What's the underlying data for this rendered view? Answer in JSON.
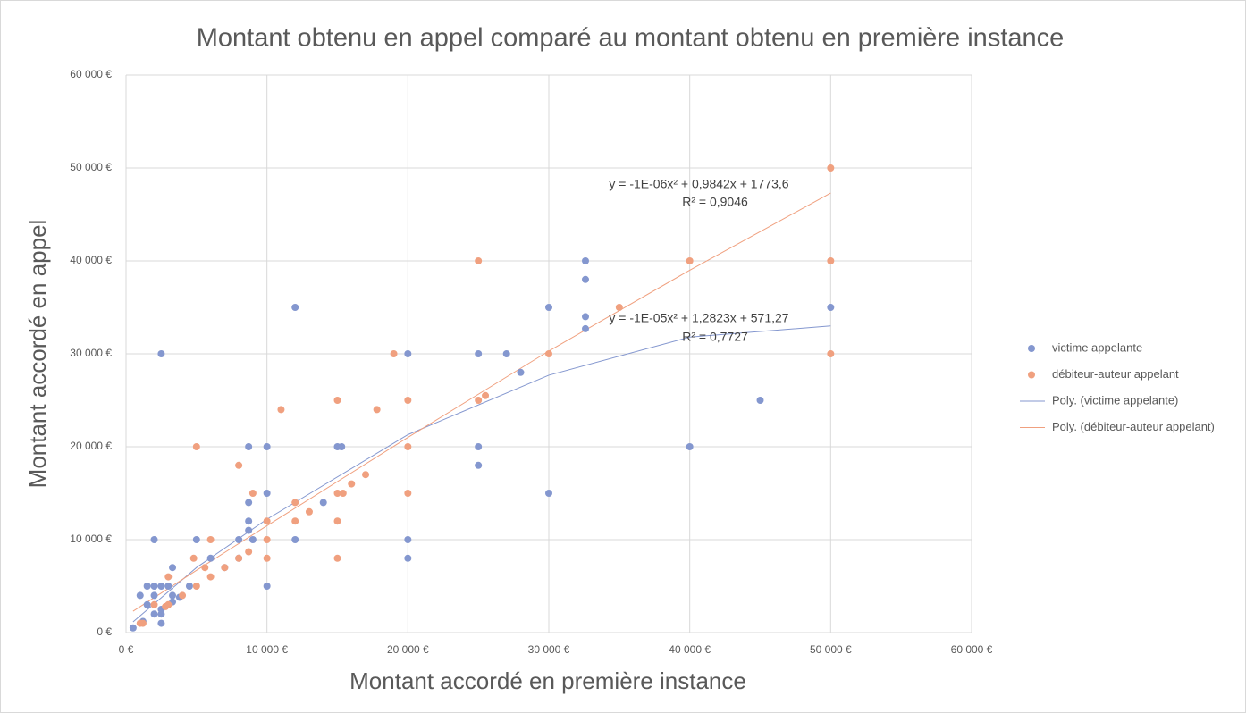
{
  "chart_data": {
    "type": "scatter",
    "title": "Montant obtenu en appel comparé au montant obtenu en première instance",
    "x_label": "Montant accordé en première instance",
    "y_label": "Montant accordé en appel",
    "xlim": [
      0,
      60000
    ],
    "ylim": [
      0,
      60000
    ],
    "xticks": [
      {
        "value": 0,
        "label": "0 €"
      },
      {
        "value": 10000,
        "label": "10 000 €"
      },
      {
        "value": 20000,
        "label": "20 000 €"
      },
      {
        "value": 30000,
        "label": "30 000 €"
      },
      {
        "value": 40000,
        "label": "40 000 €"
      },
      {
        "value": 50000,
        "label": "50 000 €"
      },
      {
        "value": 60000,
        "label": "60 000 €"
      }
    ],
    "yticks": [
      {
        "value": 0,
        "label": "0 €"
      },
      {
        "value": 10000,
        "label": "10 000 €"
      },
      {
        "value": 20000,
        "label": "20 000 €"
      },
      {
        "value": 30000,
        "label": "30 000 €"
      },
      {
        "value": 40000,
        "label": "40 000 €"
      },
      {
        "value": 50000,
        "label": "50 000 €"
      },
      {
        "value": 60000,
        "label": "60 000 €"
      }
    ],
    "grid": true,
    "legend": "right",
    "series": [
      {
        "name": "victime appelante",
        "type": "scatter",
        "color": "#8497cf",
        "x": [
          500,
          1000,
          1200,
          1500,
          1500,
          2000,
          2000,
          2000,
          2000,
          2500,
          2500,
          2500,
          2500,
          2500,
          3000,
          3300,
          3300,
          3300,
          3800,
          4500,
          5000,
          6000,
          7000,
          8000,
          8000,
          8700,
          8700,
          8700,
          8700,
          9000,
          10000,
          10000,
          10000,
          12000,
          12000,
          14000,
          15000,
          15300,
          20000,
          20000,
          20000,
          25000,
          25000,
          25000,
          27000,
          28000,
          30000,
          30000,
          32600,
          32600,
          32600,
          32600,
          40000,
          45000,
          50000
        ],
        "values": [
          500,
          4000,
          1200,
          5000,
          3000,
          10000,
          5000,
          4000,
          2000,
          5000,
          2500,
          2000,
          1000,
          30000,
          5000,
          7000,
          4000,
          3300,
          3800,
          5000,
          10000,
          8000,
          7000,
          10000,
          8000,
          20000,
          14000,
          12000,
          11000,
          10000,
          20000,
          15000,
          5000,
          35000,
          10000,
          14000,
          20000,
          20000,
          30000,
          10000,
          8000,
          30000,
          20000,
          18000,
          30000,
          28000,
          35000,
          15000,
          40000,
          38000,
          34000,
          32700,
          20000,
          25000,
          35000
        ]
      },
      {
        "name": "débiteur-auteur appelant",
        "type": "scatter",
        "color": "#f0a07f",
        "x": [
          1000,
          1200,
          2000,
          2800,
          3000,
          3000,
          4000,
          4800,
          5000,
          5000,
          5600,
          6000,
          6000,
          7000,
          8000,
          8000,
          8700,
          9000,
          10000,
          10000,
          10000,
          11000,
          12000,
          12000,
          13000,
          15000,
          15000,
          15000,
          15000,
          15400,
          16000,
          17000,
          17800,
          19000,
          20000,
          20000,
          20000,
          25000,
          25000,
          25500,
          30000,
          35000,
          40000,
          50000,
          50000,
          50000
        ],
        "values": [
          1000,
          1000,
          3000,
          2800,
          3000,
          6000,
          4000,
          8000,
          20000,
          5000,
          7000,
          10000,
          6000,
          7000,
          18000,
          8000,
          8700,
          15000,
          12000,
          10000,
          8000,
          24000,
          14000,
          12000,
          13000,
          25000,
          15000,
          12000,
          8000,
          15000,
          16000,
          17000,
          24000,
          30000,
          25000,
          20000,
          15000,
          40000,
          25000,
          25500,
          30000,
          35000,
          40000,
          50000,
          40000,
          30000
        ]
      },
      {
        "name": "Poly. (victime appelante)",
        "type": "line",
        "color": "#8497cf",
        "x": [
          500,
          5000,
          10000,
          20000,
          30000,
          40000,
          50000
        ],
        "values": [
          1150,
          7000,
          12200,
          21300,
          27700,
          31800,
          33000
        ]
      },
      {
        "name": "Poly. (débiteur-auteur appelant)",
        "type": "line",
        "color": "#f0a07f",
        "x": [
          500,
          5000,
          10000,
          20000,
          30000,
          40000,
          50000
        ],
        "values": [
          2300,
          6700,
          11500,
          21000,
          30300,
          39000,
          47300
        ]
      }
    ],
    "annotations": [
      "y = -1E-06x² + 0,9842x + 1773,6",
      "R² = 0,9046",
      "y = -1E-05x² + 1,2823x + 571,27",
      "R² = 0,7727"
    ]
  }
}
